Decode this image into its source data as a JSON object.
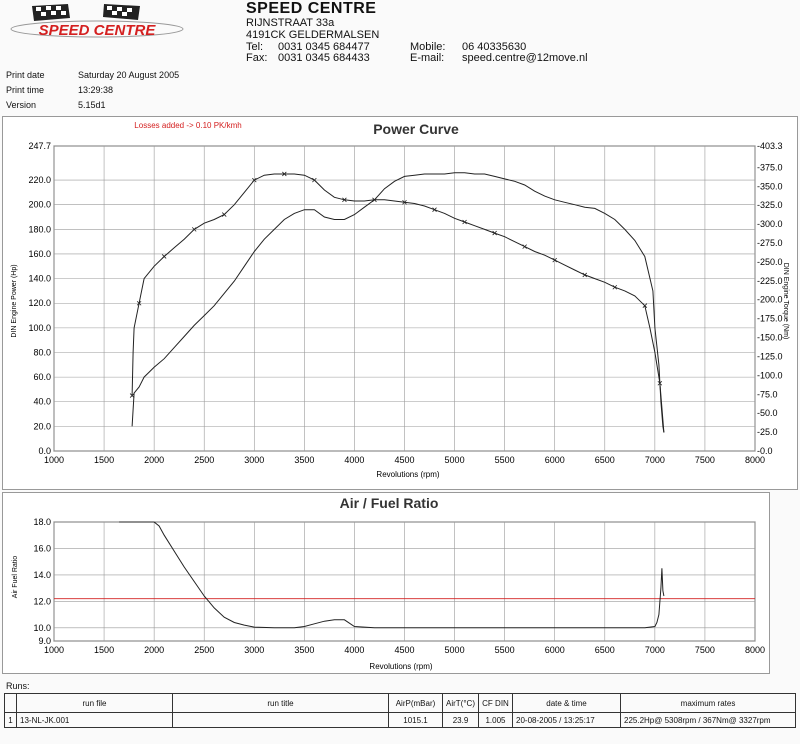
{
  "header": {
    "logo_text": "SPEED CENTRE",
    "company": "SPEED CENTRE",
    "street": "RIJNSTRAAT 33a",
    "city": "4191CK  GELDERMALSEN",
    "tel_label": "Tel:",
    "tel": "0031 0345 684477",
    "fax_label": "Fax:",
    "fax": "0031 0345 684433",
    "mobile_label": "Mobile:",
    "mobile": "06 40335630",
    "email_label": "E-mail:",
    "email": "speed.centre@12move.nl"
  },
  "meta": {
    "print_date_label": "Print date",
    "print_date": "Saturday 20 August 2005",
    "print_time_label": "Print time",
    "print_time": "13:29:38",
    "version_label": "Version",
    "version": "5.15d1"
  },
  "chart_data": [
    {
      "type": "line",
      "title": "Power Curve",
      "annotation": "Losses added -> 0.10 PK/kmh",
      "xlabel": "Revolutions (rpm)",
      "ylabel": "DIN Engine Power (Hp)",
      "y2label": "DIN Engine Torque (Nm)",
      "xlim": [
        1000,
        8000
      ],
      "ylim": [
        0,
        247.7
      ],
      "y2lim": [
        0,
        403.3
      ],
      "x_ticks": [
        "1000",
        "1500",
        "2000",
        "2500",
        "3000",
        "3500",
        "4000",
        "4500",
        "5000",
        "5500",
        "6000",
        "6500",
        "7000",
        "7500",
        "8000"
      ],
      "y_ticks": [
        "0.0",
        "20.0",
        "40.0",
        "60.0",
        "80.0",
        "100.0",
        "120.0",
        "140.0",
        "160.0",
        "180.0",
        "200.0",
        "220.0",
        "247.7"
      ],
      "y_tick_values": [
        0,
        20,
        40,
        60,
        80,
        100,
        120,
        140,
        160,
        180,
        200,
        220,
        247.7
      ],
      "y2_ticks": [
        "-0.0",
        "-25.0",
        "-50.0",
        "-75.0",
        "-100.0",
        "-125.0",
        "-150.0",
        "-175.0",
        "-200.0",
        "-225.0",
        "-250.0",
        "-275.0",
        "-300.0",
        "-325.0",
        "-350.0",
        "-375.0",
        "-403.3"
      ],
      "y2_tick_values": [
        0,
        25,
        50,
        75,
        100,
        125,
        150,
        175,
        200,
        225,
        250,
        275,
        300,
        325,
        350,
        375,
        403.3
      ],
      "grid": true,
      "series": [
        {
          "axis": "left",
          "x": [
            1780,
            1800,
            1850,
            1900,
            2000,
            2100,
            2200,
            2300,
            2400,
            2500,
            2600,
            2700,
            2800,
            2900,
            3000,
            3100,
            3200,
            3300,
            3400,
            3500,
            3600,
            3700,
            3800,
            3900,
            4000,
            4100,
            4200,
            4300,
            4400,
            4500,
            4600,
            4700,
            4800,
            4900,
            5000,
            5100,
            5200,
            5300,
            5400,
            5500,
            5600,
            5700,
            5800,
            5900,
            6000,
            6100,
            6200,
            6300,
            6400,
            6500,
            6600,
            6700,
            6800,
            6900,
            6980,
            7000,
            7040,
            7060,
            7080,
            7090
          ],
          "y": [
            20,
            47,
            52,
            60,
            68,
            75,
            84,
            93,
            102,
            110,
            118,
            128,
            138,
            150,
            162,
            172,
            180,
            188,
            193,
            196,
            196,
            190,
            188,
            188,
            192,
            198,
            204,
            213,
            219,
            223,
            224,
            225,
            225,
            225,
            226,
            226,
            225,
            225,
            223,
            221,
            219,
            216,
            211,
            207,
            204,
            202,
            200,
            198,
            197,
            193,
            188,
            180,
            171,
            158,
            130,
            100,
            70,
            40,
            20,
            15
          ]
        },
        {
          "axis": "left",
          "x": [
            1780,
            1790,
            1800,
            1850,
            1900,
            2000,
            2100,
            2200,
            2300,
            2400,
            2500,
            2600,
            2700,
            2800,
            2900,
            3000,
            3100,
            3200,
            3300,
            3400,
            3500,
            3600,
            3700,
            3800,
            3900,
            4000,
            4100,
            4200,
            4300,
            4400,
            4500,
            4600,
            4700,
            4800,
            4900,
            5000,
            5100,
            5200,
            5300,
            5400,
            5500,
            5600,
            5700,
            5800,
            5900,
            6000,
            6100,
            6200,
            6300,
            6400,
            6500,
            6600,
            6700,
            6800,
            6900,
            6950,
            7000,
            7050,
            7070,
            7090
          ],
          "y": [
            45,
            80,
            100,
            120,
            140,
            150,
            158,
            165,
            172,
            180,
            185,
            188,
            192,
            200,
            210,
            220,
            224,
            225,
            225,
            225,
            224,
            220,
            212,
            206,
            204,
            203,
            203,
            204,
            204,
            203,
            202,
            201,
            199,
            196,
            193,
            189,
            186,
            183,
            180,
            177,
            174,
            170,
            166,
            162,
            159,
            155,
            151,
            147,
            143,
            140,
            137,
            133,
            130,
            126,
            118,
            100,
            80,
            55,
            35,
            15
          ]
        }
      ]
    },
    {
      "type": "line",
      "title": "Air / Fuel Ratio",
      "xlabel": "Revolutions (rpm)",
      "ylabel": "Air Fuel Ratio",
      "xlim": [
        1000,
        8000
      ],
      "ylim": [
        9.0,
        18.0
      ],
      "x_ticks": [
        "1000",
        "1500",
        "2000",
        "2500",
        "3000",
        "3500",
        "4000",
        "4500",
        "5000",
        "5500",
        "6000",
        "6500",
        "7000",
        "7500",
        "8000"
      ],
      "y_ticks": [
        "9.0",
        "10.0",
        "12.0",
        "14.0",
        "16.0",
        "18.0"
      ],
      "y_tick_values": [
        9,
        10,
        12,
        14,
        16,
        18
      ],
      "reference_line": 12.2,
      "grid": true,
      "series": [
        {
          "x": [
            1650,
            1700,
            2000,
            2050,
            2100,
            2200,
            2300,
            2400,
            2500,
            2600,
            2700,
            2800,
            2900,
            3000,
            3200,
            3400,
            3500,
            3600,
            3700,
            3800,
            3900,
            4000,
            4100,
            4200,
            4500,
            5000,
            5500,
            6000,
            6500,
            6900,
            7000,
            7020,
            7040,
            7050,
            7060,
            7070,
            7080,
            7090
          ],
          "y": [
            18,
            18,
            18,
            17.7,
            17,
            15.8,
            14.6,
            13.5,
            12.4,
            11.5,
            10.8,
            10.4,
            10.2,
            10.05,
            10,
            10,
            10.1,
            10.3,
            10.5,
            10.6,
            10.6,
            10.1,
            10.05,
            10,
            10,
            10,
            10,
            10,
            10,
            10,
            10.1,
            10.4,
            11,
            12,
            13,
            14.5,
            12.8,
            12.4
          ]
        }
      ]
    }
  ],
  "runs": {
    "label": "Runs:",
    "headers": [
      "",
      "run file",
      "run title",
      "AirP(mBar)",
      "AirT(°C)",
      "CF DIN",
      "date & time",
      "maximum rates"
    ],
    "rows": [
      [
        "1",
        "13-NL-JK.001",
        "",
        "1015.1",
        "23.9",
        "1.005",
        "20-08-2005 / 13:25:17",
        "225.2Hp@ 5308rpm / 367Nm@ 3327rpm"
      ]
    ]
  },
  "colors": {
    "accent": "#d42020",
    "line": "#222222",
    "grid": "#9a9a9a"
  }
}
